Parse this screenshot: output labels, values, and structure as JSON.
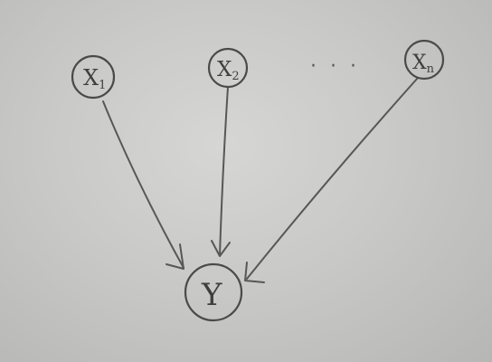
{
  "diagram": {
    "title": "",
    "nodes": [
      {
        "id": "x1",
        "label": "X",
        "subscript": "1"
      },
      {
        "id": "x2",
        "label": "X",
        "subscript": "2"
      },
      {
        "id": "xn",
        "label": "X",
        "subscript": "n"
      },
      {
        "id": "y",
        "label": "Y",
        "subscript": ""
      }
    ],
    "edges": [
      {
        "from": "x1",
        "to": "y"
      },
      {
        "from": "x2",
        "to": "y"
      },
      {
        "from": "xn",
        "to": "y"
      }
    ],
    "ellipsis": "· · ·",
    "colors": {
      "ink": "#4a4a4a",
      "paper": "#cfcfcd"
    }
  }
}
